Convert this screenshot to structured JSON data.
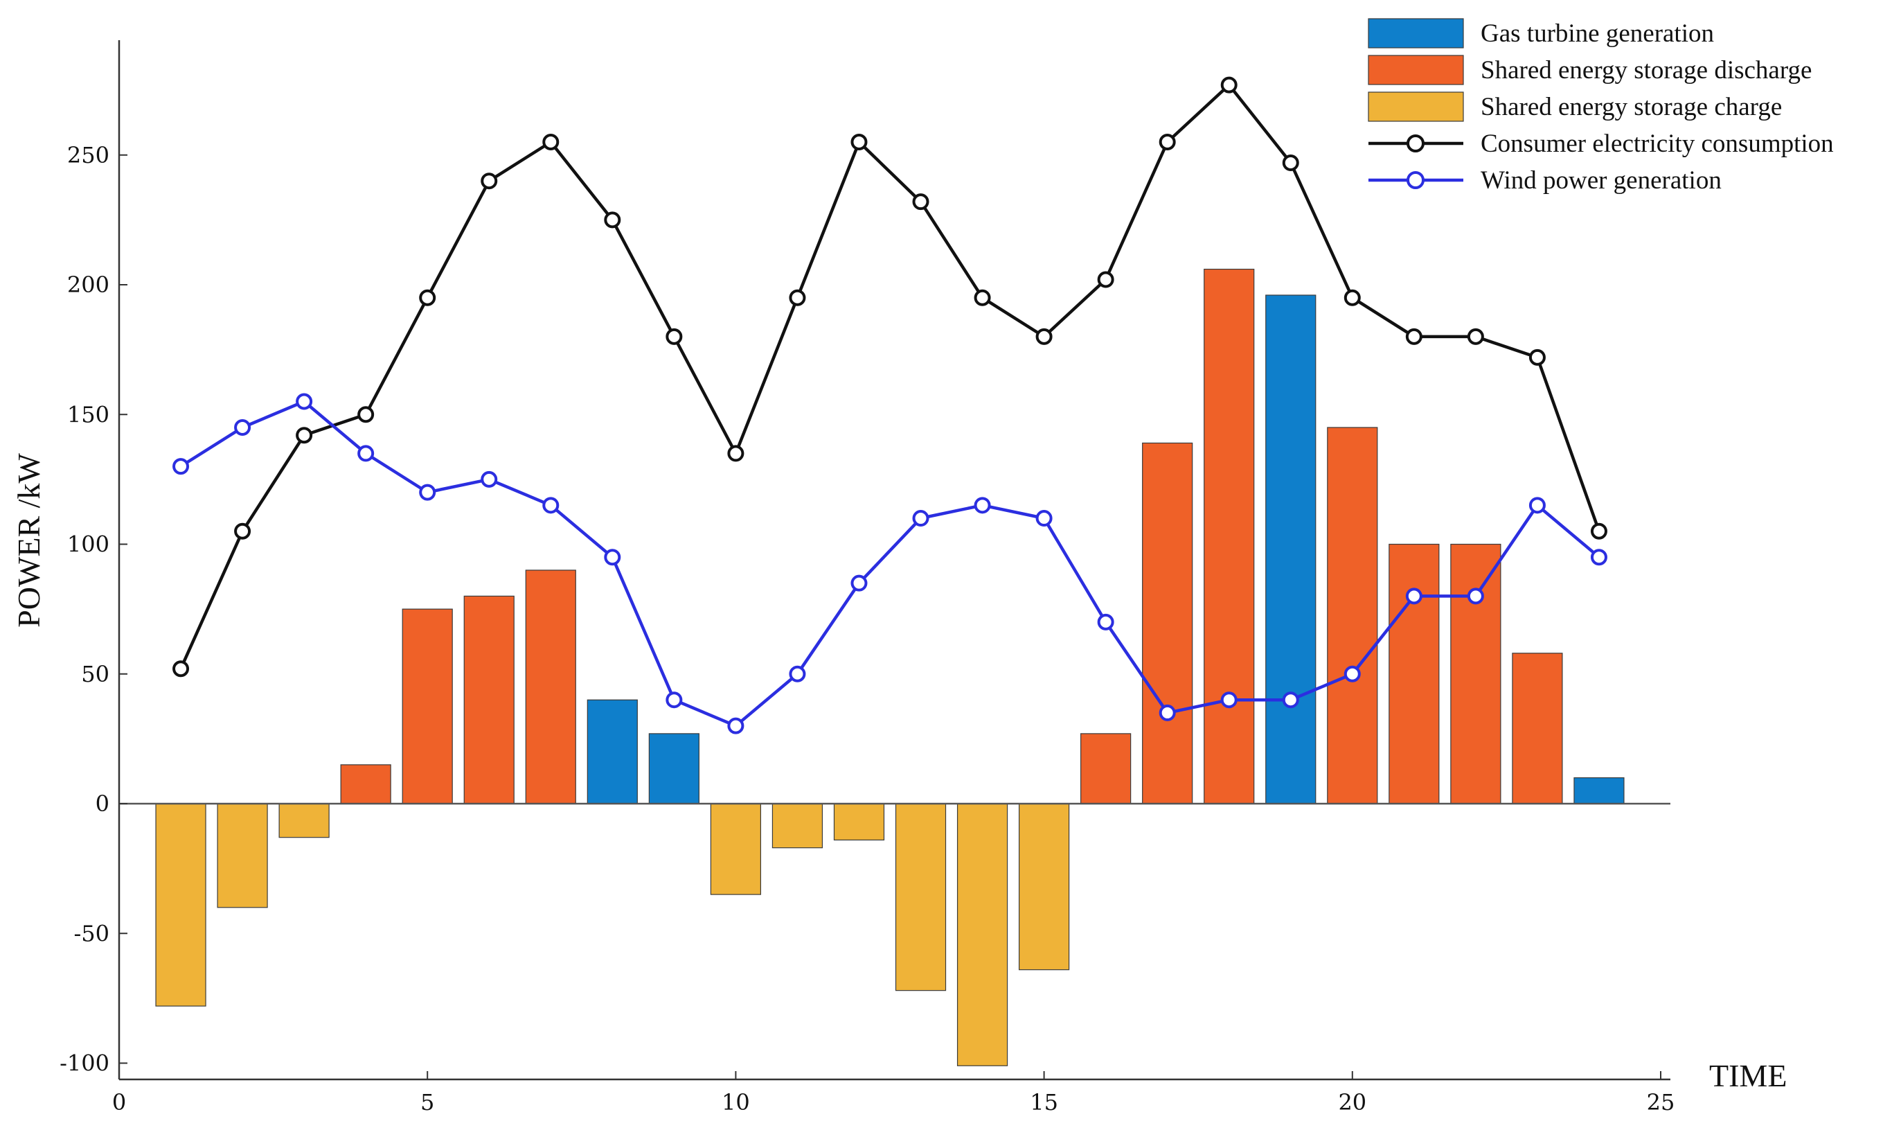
{
  "chart_data": {
    "type": "bar",
    "title": "",
    "xlabel": "TIME",
    "ylabel": "POWER /kW",
    "xlim": [
      0,
      25
    ],
    "ylim": [
      -103,
      295
    ],
    "xticks": [
      0,
      5,
      10,
      15,
      20,
      25
    ],
    "yticks": [
      -100,
      -50,
      0,
      50,
      100,
      150,
      200,
      250
    ],
    "grid": false,
    "legend_position": "top-right",
    "colors": {
      "gas": "#0f7fcb",
      "discharge": "#ef6128",
      "charge": "#efb338",
      "consumption": "#111111",
      "wind": "#2b2ee0"
    },
    "bar_series": [
      {
        "key": "gas",
        "name": "Gas turbine generation",
        "points": [
          {
            "x": 8,
            "y": 40
          },
          {
            "x": 9,
            "y": 27
          },
          {
            "x": 19,
            "y": 196
          },
          {
            "x": 24,
            "y": 10
          }
        ]
      },
      {
        "key": "discharge",
        "name": "Shared energy storage discharge",
        "points": [
          {
            "x": 4,
            "y": 15
          },
          {
            "x": 5,
            "y": 75
          },
          {
            "x": 6,
            "y": 80
          },
          {
            "x": 7,
            "y": 90
          },
          {
            "x": 16,
            "y": 27
          },
          {
            "x": 17,
            "y": 139
          },
          {
            "x": 18,
            "y": 206
          },
          {
            "x": 20,
            "y": 145
          },
          {
            "x": 21,
            "y": 100
          },
          {
            "x": 22,
            "y": 100
          },
          {
            "x": 23,
            "y": 58
          }
        ]
      },
      {
        "key": "charge",
        "name": "Shared energy storage charge",
        "points": [
          {
            "x": 1,
            "y": -78
          },
          {
            "x": 2,
            "y": -40
          },
          {
            "x": 3,
            "y": -13
          },
          {
            "x": 10,
            "y": -35
          },
          {
            "x": 11,
            "y": -17
          },
          {
            "x": 12,
            "y": -14
          },
          {
            "x": 13,
            "y": -72
          },
          {
            "x": 14,
            "y": -101
          },
          {
            "x": 15,
            "y": -64
          }
        ]
      }
    ],
    "line_series": [
      {
        "key": "consumption",
        "name": "Consumer electricity consumption",
        "x": [
          1,
          2,
          3,
          4,
          5,
          6,
          7,
          8,
          9,
          10,
          11,
          12,
          13,
          14,
          15,
          16,
          17,
          18,
          19,
          20,
          21,
          22,
          23,
          24
        ],
        "values": [
          52,
          105,
          142,
          150,
          195,
          240,
          255,
          225,
          180,
          135,
          195,
          255,
          232,
          195,
          180,
          202,
          255,
          277,
          247,
          195,
          180,
          180,
          172,
          105
        ]
      },
      {
        "key": "wind",
        "name": "Wind power generation",
        "x": [
          1,
          2,
          3,
          4,
          5,
          6,
          7,
          8,
          9,
          10,
          11,
          12,
          13,
          14,
          15,
          16,
          17,
          18,
          19,
          20,
          21,
          22,
          23,
          24
        ],
        "values": [
          130,
          145,
          155,
          135,
          120,
          125,
          115,
          95,
          40,
          30,
          50,
          85,
          110,
          115,
          110,
          70,
          35,
          40,
          40,
          50,
          80,
          80,
          115,
          95
        ]
      }
    ],
    "legend": [
      {
        "key": "gas",
        "label": "Gas turbine generation",
        "kind": "bar"
      },
      {
        "key": "discharge",
        "label": "Shared energy storage discharge",
        "kind": "bar"
      },
      {
        "key": "charge",
        "label": "Shared energy storage charge",
        "kind": "bar"
      },
      {
        "key": "consumption",
        "label": "Consumer electricity consumption",
        "kind": "line"
      },
      {
        "key": "wind",
        "label": "Wind power generation",
        "kind": "line"
      }
    ]
  }
}
